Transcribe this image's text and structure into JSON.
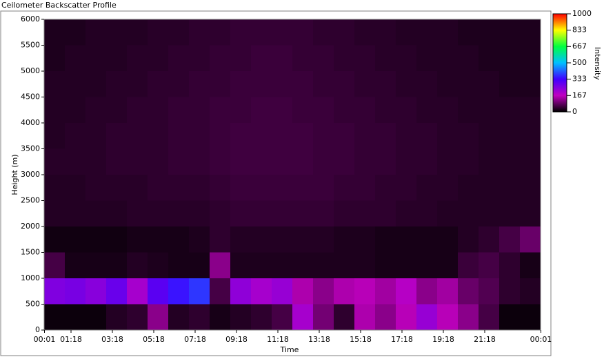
{
  "window_title": "Ceilometer Backscatter Profile",
  "chart_data": {
    "type": "heatmap",
    "x_label": "Time",
    "y_label": "Height (m)",
    "colorbar_label": "Intensity",
    "xbins": [
      0,
      1,
      2,
      3,
      4,
      5,
      6,
      7,
      8,
      9,
      10,
      11,
      12,
      13,
      14,
      15,
      16,
      17,
      18,
      19,
      20,
      21,
      22,
      23,
      24
    ],
    "ybins": [
      0,
      500,
      1000,
      1500,
      2000,
      2500,
      3000,
      3500,
      4000,
      4500,
      5000,
      5500,
      6000
    ],
    "z": [
      [
        10,
        10,
        10,
        30,
        40,
        120,
        30,
        40,
        20,
        30,
        40,
        60,
        200,
        100,
        40,
        150,
        120,
        160,
        220,
        160,
        120,
        60,
        10,
        10
      ],
      [
        250,
        260,
        240,
        280,
        200,
        300,
        350,
        380,
        60,
        230,
        200,
        220,
        150,
        120,
        150,
        160,
        140,
        180,
        120,
        140,
        90,
        70,
        40,
        30
      ],
      [
        60,
        20,
        20,
        20,
        30,
        25,
        20,
        20,
        120,
        25,
        25,
        25,
        25,
        25,
        25,
        25,
        20,
        20,
        20,
        20,
        50,
        60,
        40,
        20
      ],
      [
        15,
        15,
        15,
        15,
        20,
        20,
        20,
        25,
        40,
        30,
        30,
        30,
        30,
        30,
        25,
        25,
        20,
        20,
        20,
        20,
        30,
        40,
        60,
        90
      ],
      [
        30,
        30,
        30,
        30,
        35,
        35,
        35,
        35,
        40,
        45,
        45,
        45,
        45,
        45,
        40,
        40,
        40,
        35,
        35,
        30,
        30,
        30,
        30,
        30
      ],
      [
        30,
        30,
        35,
        35,
        35,
        40,
        40,
        40,
        45,
        50,
        50,
        50,
        50,
        50,
        45,
        45,
        40,
        40,
        35,
        35,
        30,
        30,
        30,
        30
      ],
      [
        35,
        35,
        35,
        40,
        40,
        40,
        45,
        45,
        50,
        55,
        55,
        55,
        55,
        50,
        50,
        45,
        45,
        40,
        40,
        35,
        35,
        30,
        30,
        30
      ],
      [
        30,
        35,
        35,
        40,
        40,
        40,
        45,
        45,
        50,
        55,
        55,
        55,
        55,
        50,
        50,
        45,
        45,
        40,
        40,
        35,
        35,
        30,
        30,
        30
      ],
      [
        30,
        30,
        35,
        35,
        40,
        40,
        45,
        45,
        50,
        50,
        55,
        55,
        50,
        50,
        45,
        45,
        40,
        40,
        35,
        35,
        30,
        30,
        30,
        30
      ],
      [
        30,
        30,
        30,
        35,
        35,
        40,
        40,
        45,
        45,
        50,
        50,
        50,
        50,
        45,
        45,
        40,
        40,
        35,
        35,
        30,
        30,
        30,
        25,
        25
      ],
      [
        25,
        30,
        30,
        30,
        35,
        35,
        40,
        40,
        45,
        45,
        50,
        50,
        45,
        45,
        40,
        40,
        35,
        35,
        30,
        30,
        30,
        25,
        25,
        25
      ],
      [
        25,
        25,
        30,
        30,
        30,
        35,
        35,
        40,
        40,
        45,
        45,
        45,
        45,
        40,
        40,
        35,
        35,
        30,
        30,
        30,
        25,
        25,
        25,
        25
      ]
    ],
    "xlim": [
      0,
      24
    ],
    "ylim": [
      0,
      6000
    ],
    "xticks": [
      {
        "value": 0.017,
        "label": "00:01"
      },
      {
        "value": 1.3,
        "label": "01:18"
      },
      {
        "value": 3.3,
        "label": "03:18"
      },
      {
        "value": 5.3,
        "label": "05:18"
      },
      {
        "value": 7.3,
        "label": "07:18"
      },
      {
        "value": 9.3,
        "label": "09:18"
      },
      {
        "value": 11.3,
        "label": "11:18"
      },
      {
        "value": 13.3,
        "label": "13:18"
      },
      {
        "value": 15.3,
        "label": "15:18"
      },
      {
        "value": 17.3,
        "label": "17:18"
      },
      {
        "value": 19.3,
        "label": "19:18"
      },
      {
        "value": 21.3,
        "label": "21:18"
      },
      {
        "value": 24.017,
        "label": "00:01"
      }
    ],
    "yticks": [
      0,
      500,
      1000,
      1500,
      2000,
      2500,
      3000,
      3500,
      4000,
      4500,
      5000,
      5500,
      6000
    ],
    "clim": [
      0,
      1000
    ],
    "cticks": [
      0,
      167,
      333,
      500,
      667,
      833,
      1000
    ],
    "colormap": [
      "#000000",
      "#c000c0",
      "#4000ff",
      "#00c0ff",
      "#00ff40",
      "#ffff00",
      "#ff0000"
    ]
  }
}
